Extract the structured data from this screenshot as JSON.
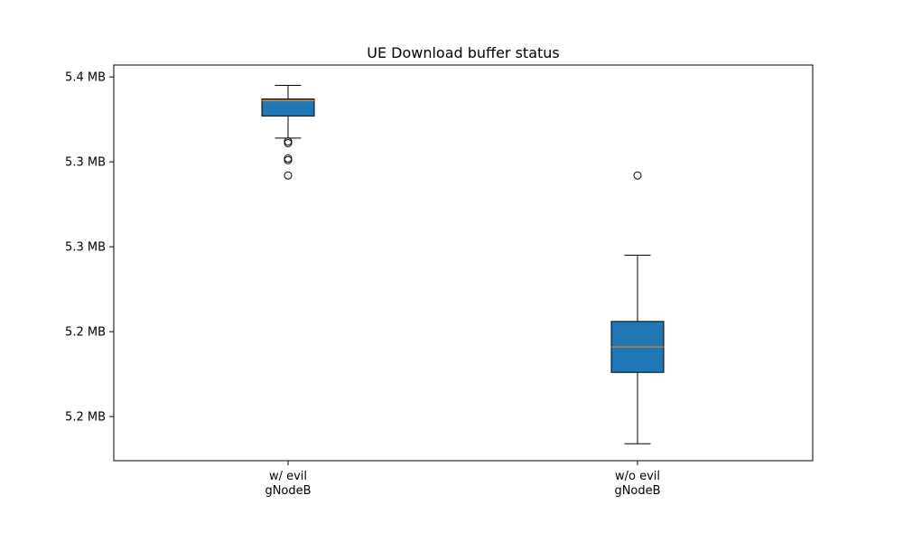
{
  "chart_data": {
    "type": "box",
    "title": "UE Download buffer status",
    "xlabel": "",
    "ylabel": "",
    "y_tick_labels": [
      "5.4 MB",
      "5.3 MB",
      "5.3 MB",
      "5.2 MB",
      "5.2 MB"
    ],
    "y_tick_values": [
      5.4,
      5.35,
      5.3,
      5.25,
      5.2
    ],
    "ylim": [
      5.174,
      5.407
    ],
    "categories": [
      {
        "label_line1": "w/ evil",
        "label_line2": "gNodeB"
      },
      {
        "label_line1": "w/o evil",
        "label_line2": "gNodeB"
      }
    ],
    "boxes": [
      {
        "whisker_low": 5.364,
        "q1": 5.377,
        "median": 5.386,
        "q3": 5.387,
        "whisker_high": 5.395,
        "outliers": [
          5.361,
          5.362,
          5.351,
          5.352,
          5.342
        ]
      },
      {
        "whisker_low": 5.184,
        "q1": 5.226,
        "median": 5.241,
        "q3": 5.256,
        "whisker_high": 5.295,
        "outliers": [
          5.342
        ]
      }
    ],
    "colors": {
      "box_fill": "#1f77b4",
      "median": "#ff7f0e",
      "line": "#000000"
    },
    "grid": false
  }
}
